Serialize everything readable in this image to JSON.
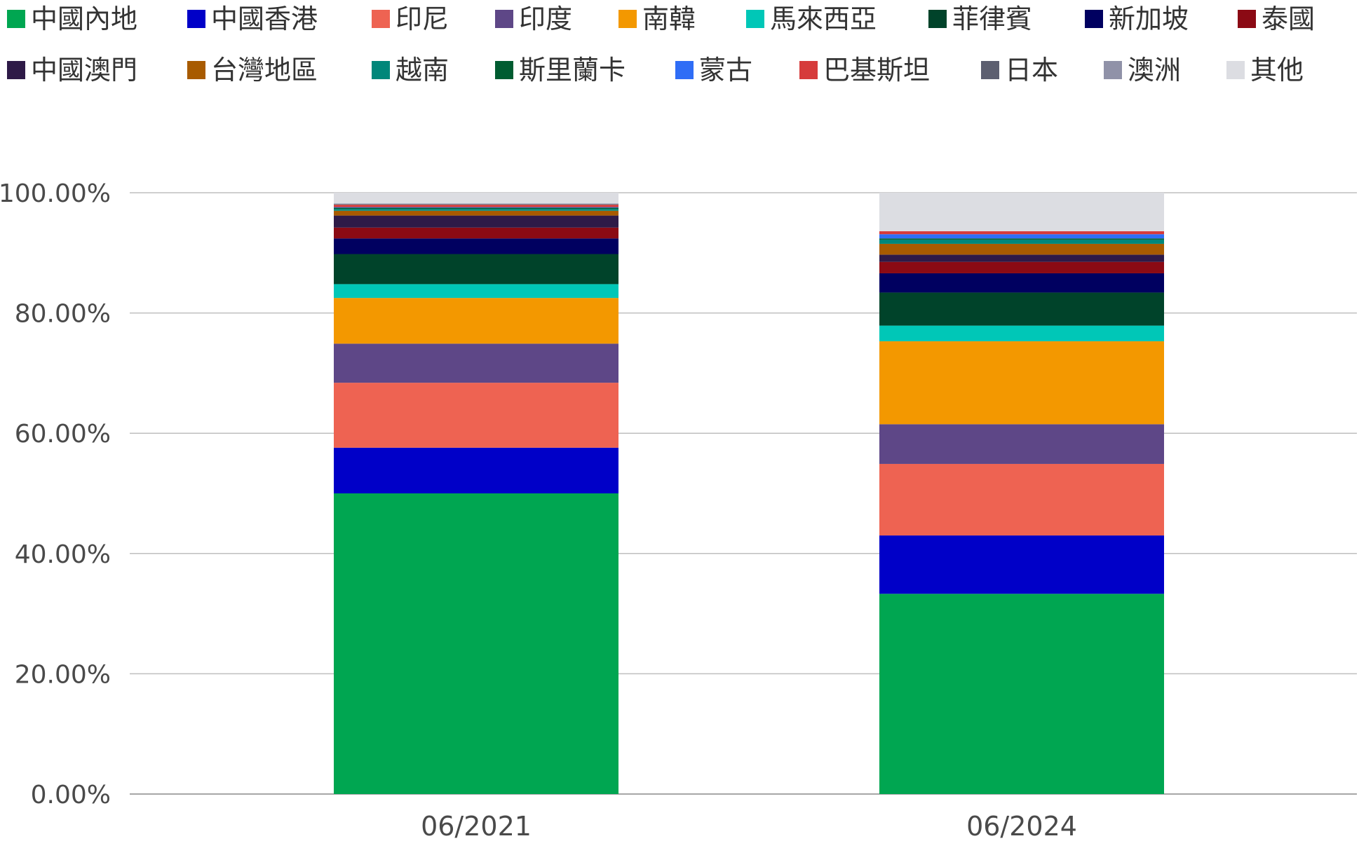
{
  "chart_data": {
    "type": "bar",
    "stacked": true,
    "categories": [
      "06/2021",
      "06/2024"
    ],
    "ylim": [
      0,
      100
    ],
    "yticks": [
      "0.00%",
      "20.00%",
      "40.00%",
      "60.00%",
      "80.00%",
      "100.00%"
    ],
    "ytick_values": [
      0,
      20,
      40,
      60,
      80,
      100
    ],
    "grid": true,
    "legend_position": "top",
    "series": [
      {
        "name": "中國內地",
        "color": "#00a651",
        "values": [
          50.0,
          33.3
        ]
      },
      {
        "name": "中國香港",
        "color": "#0000c8",
        "values": [
          7.6,
          9.7
        ]
      },
      {
        "name": "印尼",
        "color": "#ee6352",
        "values": [
          10.8,
          11.9
        ]
      },
      {
        "name": "印度",
        "color": "#5e4787",
        "values": [
          6.5,
          6.6
        ]
      },
      {
        "name": "南韓",
        "color": "#f39800",
        "values": [
          7.6,
          13.8
        ]
      },
      {
        "name": "馬來西亞",
        "color": "#00c7b7",
        "values": [
          2.3,
          2.6
        ]
      },
      {
        "name": "菲律賓",
        "color": "#00432a",
        "values": [
          5.0,
          5.5
        ]
      },
      {
        "name": "新加坡",
        "color": "#000060",
        "values": [
          2.6,
          3.2
        ]
      },
      {
        "name": "泰國",
        "color": "#8b0a14",
        "values": [
          1.8,
          1.9
        ]
      },
      {
        "name": "中國澳門",
        "color": "#2e1a47",
        "values": [
          2.0,
          1.2
        ]
      },
      {
        "name": "台灣地區",
        "color": "#a85b00",
        "values": [
          0.8,
          1.8
        ]
      },
      {
        "name": "越南",
        "color": "#00877a",
        "values": [
          0.3,
          0.7
        ]
      },
      {
        "name": "斯里蘭卡",
        "color": "#005c31",
        "values": [
          0.2,
          0.2
        ]
      },
      {
        "name": "蒙古",
        "color": "#2f6df6",
        "values": [
          0.1,
          0.7
        ]
      },
      {
        "name": "巴基斯坦",
        "color": "#d63b3b",
        "values": [
          0.4,
          0.5
        ]
      },
      {
        "name": "日本",
        "color": "#5c5f70",
        "values": [
          0.1,
          0.0
        ]
      },
      {
        "name": "澳洲",
        "color": "#9092a8",
        "values": [
          0.1,
          0.0
        ]
      },
      {
        "name": "其他",
        "color": "#dcdde2",
        "values": [
          1.8,
          6.4
        ]
      }
    ]
  }
}
